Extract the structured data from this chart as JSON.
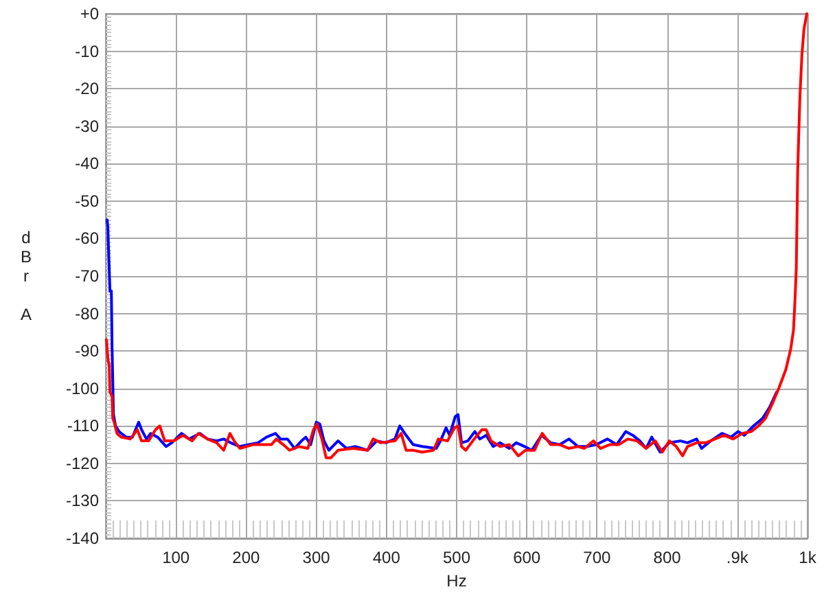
{
  "chart_data": {
    "type": "line",
    "xlabel": "Hz",
    "ylabel": "dBr A",
    "xlim": [
      0,
      1000
    ],
    "ylim": [
      -140,
      0
    ],
    "xticks": [
      100,
      200,
      300,
      400,
      500,
      600,
      700,
      800,
      {
        "value": 900,
        "label": ".9k"
      },
      {
        "value": 1000,
        "label": "1k"
      }
    ],
    "yticks": [
      {
        "value": 0,
        "label": "+0"
      },
      -10,
      -20,
      -30,
      -40,
      -50,
      -60,
      -70,
      -80,
      -90,
      -100,
      -110,
      -120,
      -130,
      -140
    ],
    "grid": true,
    "marker": "none",
    "series": [
      {
        "color": "#0000ff",
        "x": [
          2,
          3,
          4,
          6,
          8,
          9,
          11,
          14,
          19,
          29,
          38,
          47,
          51,
          58,
          64,
          74,
          86,
          94,
          108,
          119,
          134,
          145,
          158,
          168,
          178,
          191,
          204,
          217,
          229,
          242,
          249,
          259,
          269,
          279,
          285,
          292,
          300,
          305,
          311,
          318,
          331,
          343,
          356,
          373,
          386,
          399,
          412,
          419,
          426,
          438,
          451,
          471,
          477,
          485,
          490,
          498,
          502,
          507,
          516,
          526,
          533,
          542,
          552,
          562,
          575,
          585,
          597,
          607,
          621,
          634,
          647,
          660,
          673,
          686,
          699,
          715,
          728,
          741,
          751,
          761,
          770,
          778,
          790,
          803,
          819,
          829,
          842,
          849,
          862,
          878,
          891,
          901,
          910,
          923,
          936,
          946,
          956
        ],
        "values": [
          -55,
          -57,
          -63,
          -74,
          -74,
          -89,
          -107,
          -110,
          -111.5,
          -113,
          -113,
          -109,
          -111,
          -113.5,
          -112,
          -113,
          -115.5,
          -114.5,
          -112,
          -113.5,
          -112,
          -113.5,
          -114,
          -113.5,
          -114.5,
          -115.5,
          -115,
          -114.5,
          -113,
          -112,
          -113.5,
          -113.5,
          -116,
          -114,
          -113,
          -115,
          -109,
          -109.5,
          -114,
          -116.5,
          -114,
          -116,
          -115.5,
          -116.5,
          -114,
          -114.5,
          -113.5,
          -110,
          -112,
          -115,
          -115.5,
          -116,
          -114,
          -110.5,
          -112.5,
          -107.5,
          -107,
          -114.5,
          -114,
          -111.5,
          -113.5,
          -112.5,
          -115.5,
          -114.5,
          -116,
          -114.5,
          -115.5,
          -116.5,
          -112.5,
          -114.5,
          -115,
          -113.5,
          -115.5,
          -115.5,
          -115,
          -113.5,
          -115,
          -111.5,
          -112.5,
          -114,
          -116,
          -113,
          -117,
          -114.5,
          -114,
          -114.5,
          -113.5,
          -116,
          -114,
          -112,
          -113,
          -111.5,
          -112.5,
          -110,
          -108,
          -105,
          -101
        ]
      },
      {
        "color": "#ff0000",
        "x": [
          1,
          3,
          5,
          6,
          9,
          10,
          12,
          16,
          22,
          35,
          45,
          51,
          61,
          71,
          77,
          84,
          97,
          110,
          123,
          132,
          145,
          158,
          168,
          177,
          183,
          191,
          210,
          236,
          243,
          253,
          262,
          275,
          288,
          296,
          301,
          308,
          314,
          321,
          331,
          353,
          373,
          381,
          392,
          412,
          421,
          428,
          438,
          451,
          467,
          474,
          487,
          497,
          502,
          507,
          513,
          523,
          536,
          542,
          549,
          562,
          575,
          588,
          598,
          611,
          622,
          634,
          647,
          660,
          673,
          682,
          695,
          705,
          718,
          731,
          744,
          757,
          770,
          783,
          793,
          803,
          813,
          822,
          829,
          842,
          855,
          868,
          881,
          894,
          907,
          920,
          930,
          940,
          950,
          959,
          969,
          976,
          980,
          982,
          984,
          986,
          989,
          992,
          995,
          999
        ],
        "values": [
          -87,
          -92,
          -94,
          -101,
          -102,
          -108,
          -109,
          -112,
          -113,
          -113.5,
          -111,
          -114,
          -114,
          -111,
          -110,
          -114,
          -114,
          -112.5,
          -114,
          -112,
          -113.5,
          -114.5,
          -116.5,
          -112,
          -114,
          -116,
          -115,
          -115,
          -113.5,
          -115,
          -116.5,
          -115.5,
          -116,
          -111,
          -109.5,
          -113.5,
          -118.5,
          -118.5,
          -116.5,
          -116,
          -116.5,
          -113.5,
          -114.5,
          -114,
          -112,
          -116.5,
          -116.5,
          -117,
          -116.5,
          -113.5,
          -114,
          -110.5,
          -110,
          -115.5,
          -116.5,
          -114,
          -111,
          -111,
          -114,
          -115.5,
          -115,
          -118,
          -116.5,
          -116.5,
          -112,
          -115,
          -115,
          -116,
          -115.5,
          -116,
          -114,
          -116,
          -115,
          -115,
          -113.5,
          -114,
          -116,
          -114,
          -117,
          -114,
          -115.5,
          -118,
          -115.5,
          -114.5,
          -114.5,
          -113.5,
          -112.5,
          -113.5,
          -112,
          -111.5,
          -110,
          -108,
          -104,
          -100,
          -95,
          -89.5,
          -84.5,
          -77,
          -68,
          -42,
          -23,
          -11,
          -4,
          0
        ]
      }
    ]
  }
}
